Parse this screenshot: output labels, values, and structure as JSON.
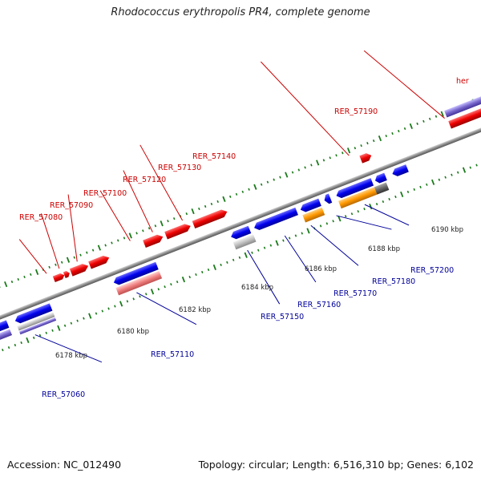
{
  "title": "Rhodococcus erythropolis PR4, complete genome",
  "footer": {
    "accession": "Accession: NC_012490",
    "summary": "Topology: circular; Length: 6,516,310 bp; Genes: 6,102"
  },
  "colors": {
    "forward": "#ff0000",
    "reverse": "#0000ff",
    "forward_label": "#cc0000",
    "reverse_label": "#000099",
    "tick": "#1a7a1a",
    "backbone": "#8a8a8a",
    "pseudo_light_red": "#f08080",
    "pseudo_grey": "#bbbbbb",
    "orange": "#ff9900",
    "purple": "#7766cc"
  },
  "tick_labels": [
    "6178 kbp",
    "6180 kbp",
    "6182 kbp",
    "6184 kbp",
    "6186 kbp",
    "6188 kbp",
    "6190 kbp"
  ],
  "forward_labels": [
    "RER_57080",
    "RER_57090",
    "RER_57100",
    "RER_57120",
    "RER_57130",
    "RER_57140",
    "RER_57190",
    "her"
  ],
  "reverse_labels": [
    "RER_57060",
    "RER_57110",
    "RER_57150",
    "RER_57160",
    "RER_57170",
    "RER_57180",
    "RER_57200"
  ]
}
